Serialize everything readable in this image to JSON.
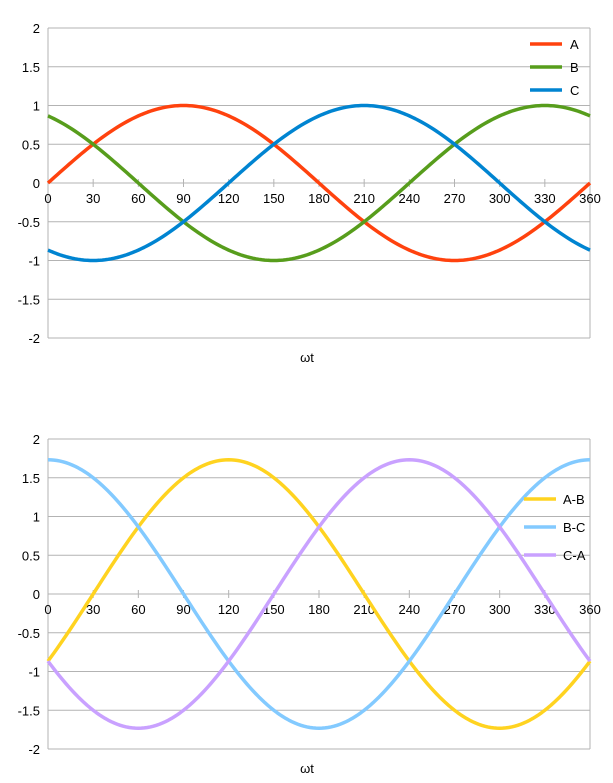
{
  "chart_data": [
    {
      "type": "line",
      "xlabel": "ωt",
      "ylabel": "",
      "title": "",
      "ylim": [
        -2,
        2
      ],
      "yticks": [
        "2",
        "1.5",
        "1",
        "0.5",
        "0",
        "-0.5",
        "-1",
        "-1.5",
        "-2"
      ],
      "xlim": [
        0,
        360
      ],
      "xticks": [
        "0",
        "30",
        "60",
        "90",
        "120",
        "150",
        "180",
        "210",
        "240",
        "270",
        "300",
        "330",
        "360"
      ],
      "grid": "horizontal",
      "legend": "top-right",
      "series": [
        {
          "name": "A",
          "color": "#ff420e",
          "amplitude": 1,
          "phase_deg": 0
        },
        {
          "name": "B",
          "color": "#579d1c",
          "amplitude": 1,
          "phase_deg": 120
        },
        {
          "name": "C",
          "color": "#0084d1",
          "amplitude": 1,
          "phase_deg": -120
        }
      ]
    },
    {
      "type": "line",
      "xlabel": "ωt",
      "ylabel": "",
      "title": "",
      "ylim": [
        -2,
        2
      ],
      "yticks": [
        "2",
        "1.5",
        "1",
        "0.5",
        "0",
        "-0.5",
        "-1",
        "-1.5",
        "-2"
      ],
      "xlim": [
        0,
        360
      ],
      "xticks": [
        "0",
        "30",
        "60",
        "90",
        "120",
        "150",
        "180",
        "210",
        "240",
        "270",
        "300",
        "330",
        "360"
      ],
      "grid": "horizontal",
      "legend": "right",
      "series": [
        {
          "name": "A-B",
          "color": "#ffd320",
          "amplitude": 1.732,
          "phase_deg": -30
        },
        {
          "name": "B-C",
          "color": "#83caff",
          "amplitude": 1.732,
          "phase_deg": 90
        },
        {
          "name": "C-A",
          "color": "#c9a1ff",
          "amplitude": 1.732,
          "phase_deg": -150
        }
      ]
    }
  ]
}
